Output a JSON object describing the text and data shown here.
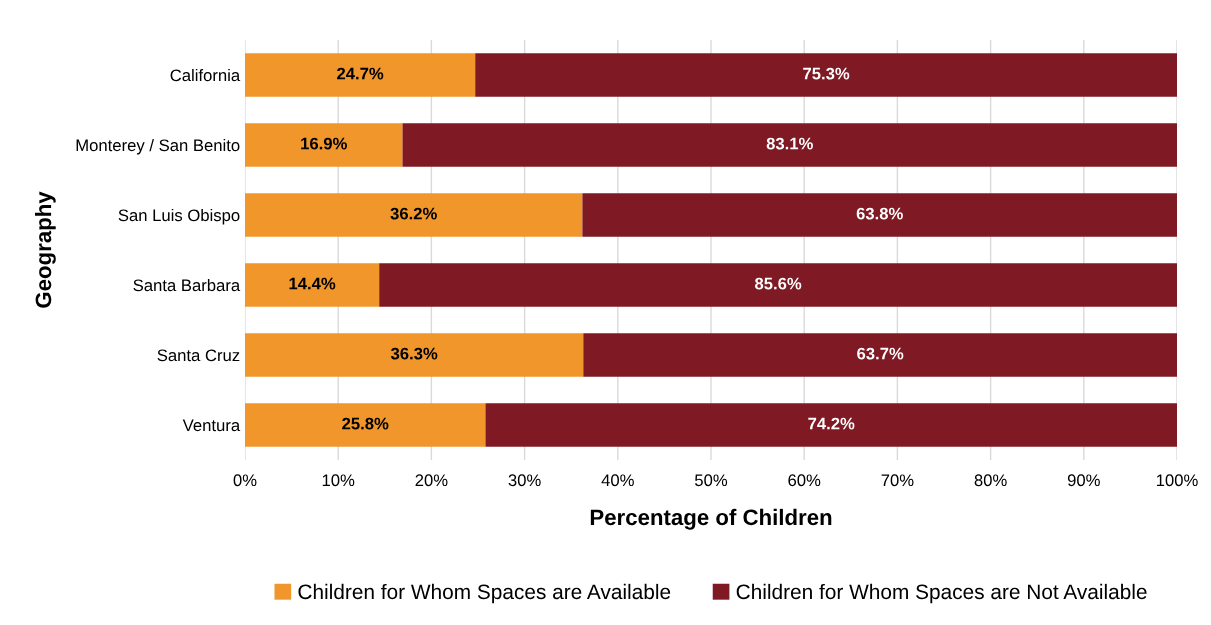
{
  "chart_data": {
    "type": "bar",
    "orientation": "horizontal",
    "stacked": true,
    "xlabel": "Percentage of Children",
    "ylabel": "Geography",
    "categories": [
      "California",
      "Monterey / San Benito",
      "San Luis Obispo",
      "Santa Barbara",
      "Santa Cruz",
      "Ventura"
    ],
    "series": [
      {
        "name": "Children for Whom Spaces are Available",
        "color": "#f0962a",
        "values": [
          24.7,
          16.9,
          36.2,
          14.4,
          36.3,
          25.8
        ],
        "value_labels": [
          "24.7%",
          "16.9%",
          "36.2%",
          "14.4%",
          "36.3%",
          "25.8%"
        ]
      },
      {
        "name": "Children for Whom Spaces are Not Available",
        "color": "#7f1a24",
        "values": [
          75.3,
          83.1,
          63.8,
          85.6,
          63.7,
          74.2
        ],
        "value_labels": [
          "75.3%",
          "83.1%",
          "63.8%",
          "85.6%",
          "63.7%",
          "74.2%"
        ]
      }
    ],
    "xlim": [
      0,
      100
    ],
    "xticks": [
      {
        "value": 0,
        "label": "0%"
      },
      {
        "value": 10,
        "label": "10%"
      },
      {
        "value": 20,
        "label": "20%"
      },
      {
        "value": 30,
        "label": "30%"
      },
      {
        "value": 40,
        "label": "40%"
      },
      {
        "value": 50,
        "label": "50%"
      },
      {
        "value": 60,
        "label": "60%"
      },
      {
        "value": 70,
        "label": "70%"
      },
      {
        "value": 80,
        "label": "80%"
      },
      {
        "value": 90,
        "label": "90%"
      },
      {
        "value": 100,
        "label": "100%"
      }
    ],
    "grid": "x",
    "legend": "bottom"
  }
}
